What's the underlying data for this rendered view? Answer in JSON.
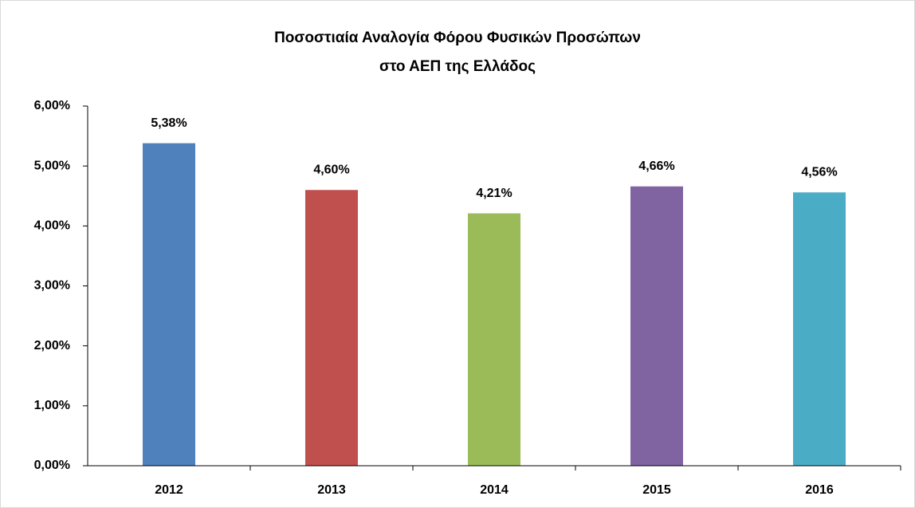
{
  "chart_data": {
    "type": "bar",
    "title": [
      "Ποσοστιαία Αναλογία Φόρου Φυσικών Προσώπων",
      "στο ΑΕΠ της Ελλάδος"
    ],
    "categories": [
      "2012",
      "2013",
      "2014",
      "2015",
      "2016"
    ],
    "values": [
      5.38,
      4.6,
      4.21,
      4.66,
      4.56
    ],
    "value_labels": [
      "5,38%",
      "4,60%",
      "4,21%",
      "4,66%",
      "4,56%"
    ],
    "colors": [
      "#4f81bd",
      "#c0504d",
      "#9bbb59",
      "#8064a2",
      "#4bacc6"
    ],
    "ylim": [
      0,
      6
    ],
    "yticks": [
      {
        "value": 0,
        "label": "0,00%"
      },
      {
        "value": 1,
        "label": "1,00%"
      },
      {
        "value": 2,
        "label": "2,00%"
      },
      {
        "value": 3,
        "label": "3,00%"
      },
      {
        "value": 4,
        "label": "4,00%"
      },
      {
        "value": 5,
        "label": "5,00%"
      },
      {
        "value": 6,
        "label": "6,00%"
      }
    ],
    "grid": false
  }
}
